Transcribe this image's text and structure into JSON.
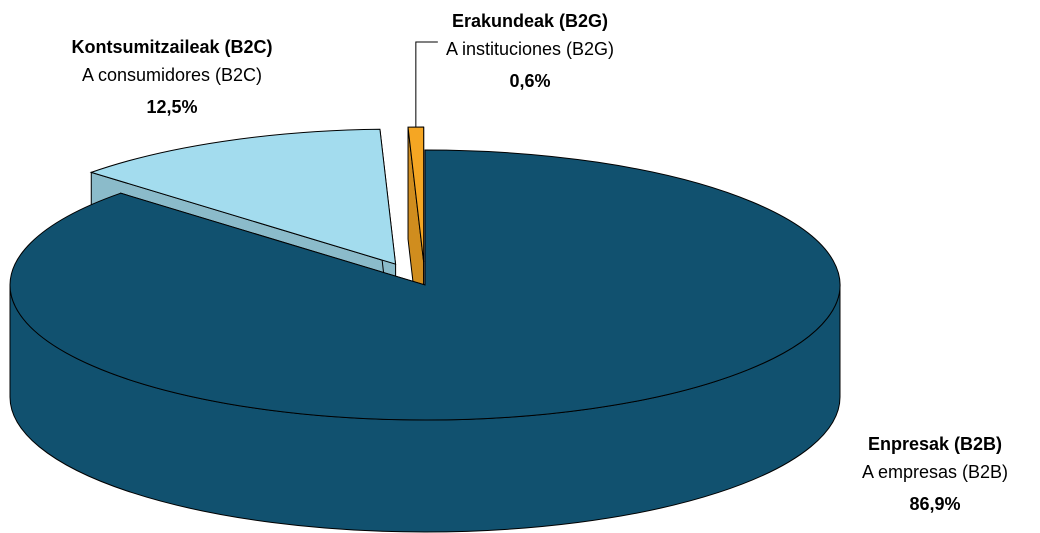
{
  "chart_data": {
    "type": "pie",
    "categories": [
      "Enpresak (B2B)",
      "Kontsumitzaileak (B2C)",
      "Erakundeak (B2G)"
    ],
    "sublabels": [
      "A empresas (B2B)",
      "A consumidores (B2C)",
      "A instituciones (B2G)"
    ],
    "values": [
      86.9,
      12.5,
      0.6
    ],
    "value_labels": [
      "86,9%",
      "12,5%",
      "0,6%"
    ],
    "colors": [
      "#11516f",
      "#a3dcee",
      "#f5a623"
    ]
  }
}
